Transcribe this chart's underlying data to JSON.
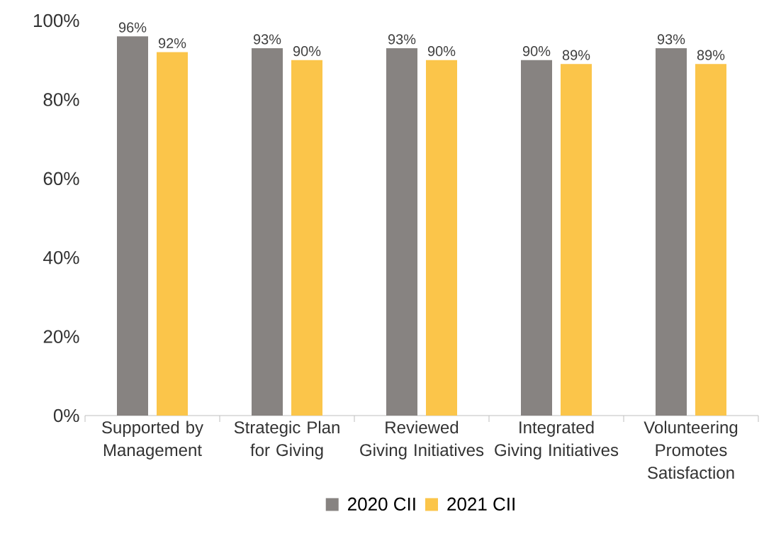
{
  "chart_data": {
    "type": "bar",
    "categories": [
      "Supported by Management",
      "Strategic Plan for Giving",
      "Reviewed Giving Initiatives",
      "Integrated Giving Initiatives",
      "Volunteering Promotes Satisfaction"
    ],
    "series": [
      {
        "name": "2020 CII",
        "color": "#878381",
        "values": [
          96,
          93,
          93,
          90,
          93
        ],
        "value_labels": [
          "96%",
          "93%",
          "93%",
          "90%",
          "93%"
        ]
      },
      {
        "name": "2021 CII",
        "color": "#fbc54a",
        "values": [
          92,
          90,
          90,
          89,
          89
        ],
        "value_labels": [
          "92%",
          "90%",
          "90%",
          "89%",
          "89%"
        ]
      }
    ],
    "ylim": [
      0,
      100
    ],
    "yticks": [
      {
        "value": 0,
        "label": "0%"
      },
      {
        "value": 20,
        "label": "20%"
      },
      {
        "value": 40,
        "label": "40%"
      },
      {
        "value": 60,
        "label": "60%"
      },
      {
        "value": 80,
        "label": "80%"
      },
      {
        "value": 100,
        "label": "100%"
      }
    ],
    "grid": false,
    "legend": "bottom"
  }
}
